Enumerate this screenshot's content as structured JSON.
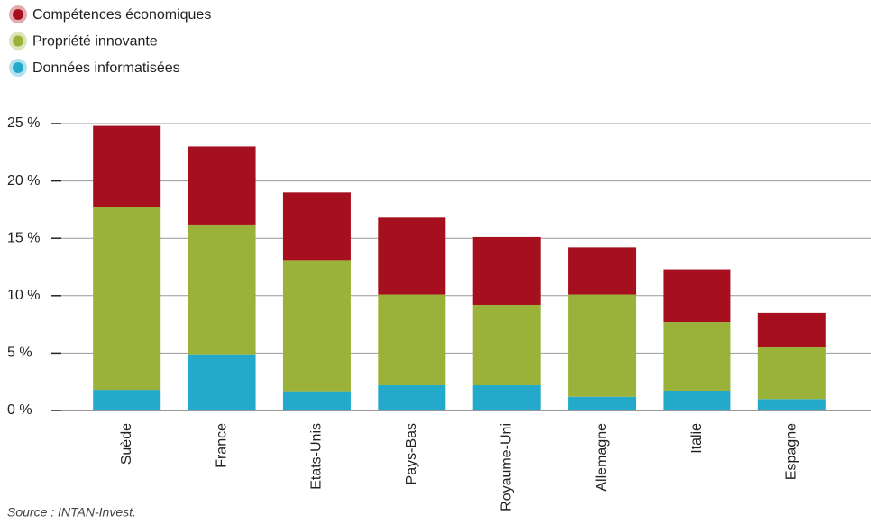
{
  "chart_data": {
    "type": "stacked_bar",
    "categories": [
      "Suède",
      "France",
      "Etats-Unis",
      "Pays-Bas",
      "Royaume-Uni",
      "Allemagne",
      "Italie",
      "Espagne"
    ],
    "series": [
      {
        "name": "Compétences économiques",
        "color": "#a6101e",
        "values": [
          7.1,
          6.8,
          5.9,
          6.7,
          5.9,
          4.1,
          4.6,
          3.0
        ]
      },
      {
        "name": "Propriété innovante",
        "color": "#9bb23a",
        "values": [
          15.9,
          11.3,
          11.5,
          7.9,
          7.0,
          8.9,
          6.0,
          4.5
        ]
      },
      {
        "name": "Données informatisées",
        "color": "#23aacb",
        "values": [
          1.8,
          4.9,
          1.6,
          2.2,
          2.2,
          1.2,
          1.7,
          1.0
        ]
      }
    ],
    "ylim": [
      0,
      25
    ],
    "yticks": [
      {
        "value": 0,
        "label": "0 %"
      },
      {
        "value": 5,
        "label": "5 %"
      },
      {
        "value": 10,
        "label": "10 %"
      },
      {
        "value": 15,
        "label": "15 %"
      },
      {
        "value": 20,
        "label": "20 %"
      },
      {
        "value": 25,
        "label": "25 %"
      }
    ],
    "grid": true,
    "source": "Source : INTAN-Invest."
  }
}
